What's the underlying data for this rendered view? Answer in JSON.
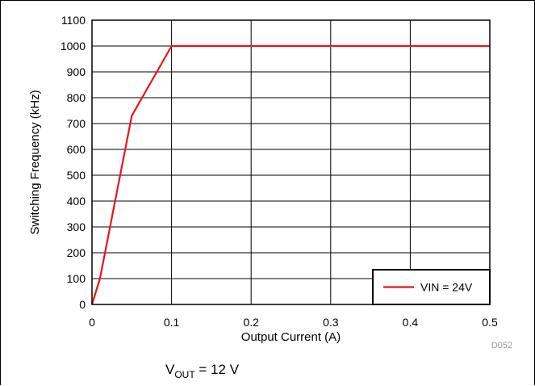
{
  "chart_data": {
    "type": "line",
    "xlabel": "Output Current (A)",
    "ylabel": "Switching Frequency (kHz)",
    "xlim": [
      0,
      0.5
    ],
    "ylim": [
      0,
      1100
    ],
    "x_ticks": [
      "0",
      "0.1",
      "0.2",
      "0.3",
      "0.4",
      "0.5"
    ],
    "y_ticks": [
      "0",
      "100",
      "200",
      "300",
      "400",
      "500",
      "600",
      "700",
      "800",
      "900",
      "1000",
      "1100"
    ],
    "grid": true,
    "legend_position": "bottom-right",
    "series": [
      {
        "name": "VIN = 24V",
        "color": "#e8141c",
        "x": [
          0,
          0.01,
          0.05,
          0.1,
          0.2,
          0.3,
          0.4,
          0.5
        ],
        "y": [
          0,
          100,
          730,
          1000,
          1000,
          1000,
          1000,
          1000
        ]
      }
    ]
  },
  "figure_id": "D052",
  "caption": {
    "prefix": "V",
    "subscript": "OUT",
    "suffix": " = 12 V"
  }
}
